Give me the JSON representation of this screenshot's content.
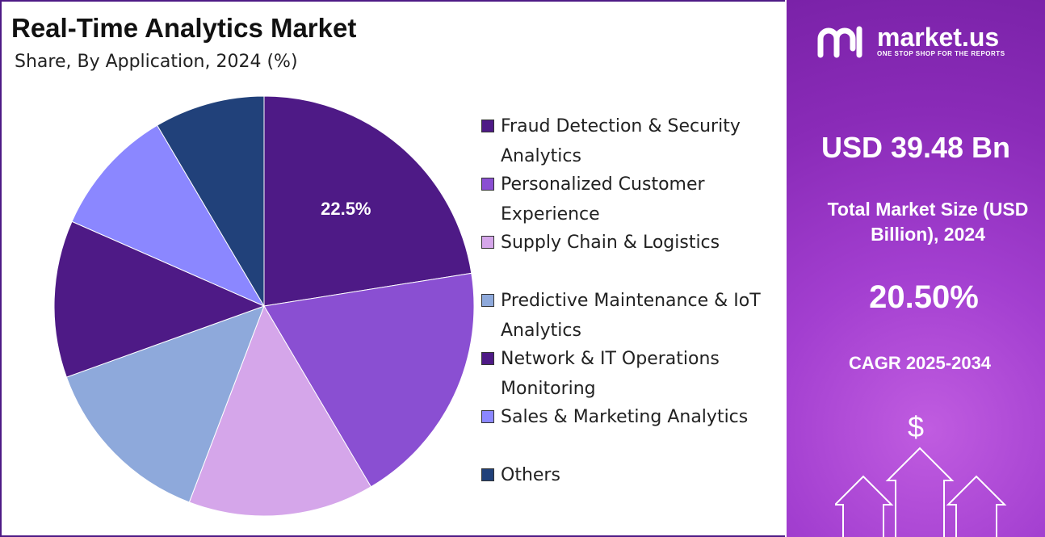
{
  "chart_data": {
    "type": "pie",
    "title": "Real-Time Analytics Market",
    "subtitle": "Share, By Application, 2024 (%)",
    "categories": [
      "Fraud Detection & Security Analytics",
      "Personalized Customer Experience",
      "Supply Chain & Logistics",
      "Predictive Maintenance & IoT Analytics",
      "Network & IT Operations Monitoring",
      "Sales & Marketing Analytics",
      "Others"
    ],
    "values": [
      22.5,
      19.0,
      14.3,
      13.7,
      12.1,
      9.9,
      8.5
    ],
    "value_labels": [
      "22.5%",
      null,
      null,
      null,
      null,
      null,
      null
    ],
    "colors": [
      "#4e1a86",
      "#8a4fd2",
      "#d5a6ea",
      "#8ea9db",
      "#4e1a86",
      "#8b87ff",
      "#21417a"
    ]
  },
  "panel": {
    "brand": "market.us",
    "tagline": "ONE STOP SHOP FOR THE REPORTS",
    "market_size": "USD 39.48 Bn",
    "market_size_label": "Total Market Size (USD Billion), 2024",
    "cagr": "20.50%",
    "cagr_label": "CAGR 2025-2034",
    "currency_symbol": "$"
  }
}
